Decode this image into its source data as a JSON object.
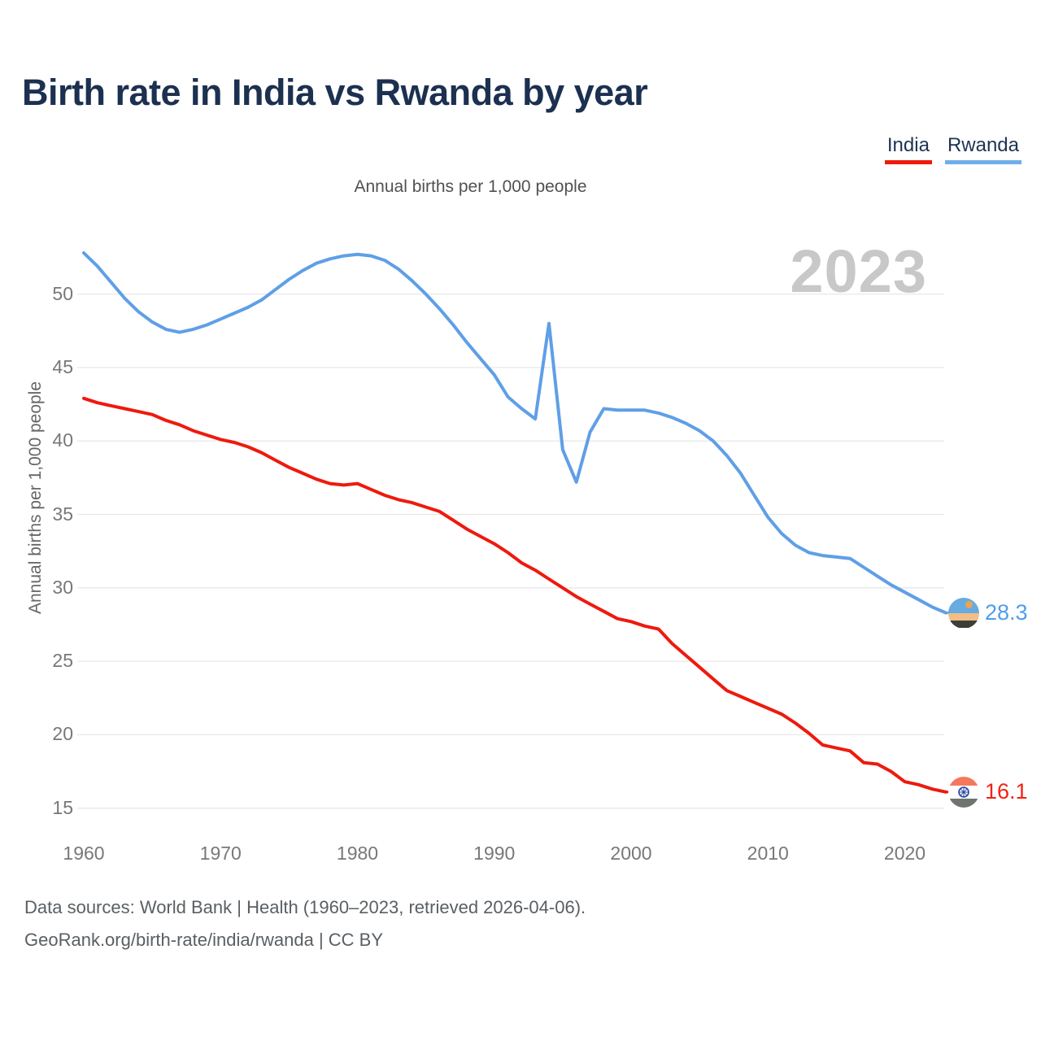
{
  "header": {
    "title": "Birth rate in India vs Rwanda by year"
  },
  "legend": {
    "items": [
      {
        "label": "India",
        "color": "#ee1a0d"
      },
      {
        "label": "Rwanda",
        "color": "#70aeea"
      }
    ]
  },
  "subtitle": "Annual births per 1,000 people",
  "watermark": "2023",
  "y_axis": {
    "title": "Annual births per 1,000 people",
    "ticks": [
      15,
      20,
      25,
      30,
      35,
      40,
      45,
      50
    ]
  },
  "x_axis": {
    "ticks": [
      1960,
      1970,
      1980,
      1990,
      2000,
      2010,
      2020
    ]
  },
  "end_labels": {
    "rwanda": {
      "value": "28.3",
      "flag": "rwanda-flag"
    },
    "india": {
      "value": "16.1",
      "flag": "india-flag"
    }
  },
  "footer": {
    "line1": "Data sources: World Bank | Health (1960–2023, retrieved 2026-04-06).",
    "line2": "GeoRank.org/birth-rate/india/rwanda | CC BY"
  },
  "colors": {
    "india_line": "#ee1a0d",
    "rwanda_line": "#5f9fe6",
    "india_label": "#f42110",
    "rwanda_label": "#4e9deb",
    "grid": "#e8e8e8",
    "watermark": "#c8c8c8",
    "title": "#1c3050",
    "tick": "#76787a"
  },
  "chart_data": {
    "type": "line",
    "title": "Birth rate in India vs Rwanda by year",
    "subtitle": "Annual births per 1,000 people",
    "xlabel": "",
    "ylabel": "Annual births per 1,000 people",
    "x_start": 1960,
    "x_end": 2023,
    "xticks": [
      1960,
      1970,
      1980,
      1990,
      2000,
      2010,
      2020
    ],
    "yticks": [
      15,
      20,
      25,
      30,
      35,
      40,
      45,
      50
    ],
    "ylim": [
      14,
      54
    ],
    "grid": true,
    "legend_position": "top-right",
    "series": [
      {
        "name": "India",
        "color": "#ee1a0d",
        "end_label": "16.1",
        "values": [
          42.9,
          42.6,
          42.4,
          42.2,
          42.0,
          41.8,
          41.4,
          41.1,
          40.7,
          40.4,
          40.1,
          39.9,
          39.6,
          39.2,
          38.7,
          38.2,
          37.8,
          37.4,
          37.1,
          37.0,
          37.1,
          36.7,
          36.3,
          36.0,
          35.8,
          35.5,
          35.2,
          34.6,
          34.0,
          33.5,
          33.0,
          32.4,
          31.7,
          31.2,
          30.6,
          30.0,
          29.4,
          28.9,
          28.4,
          27.9,
          27.7,
          27.4,
          27.2,
          26.2,
          25.4,
          24.6,
          23.8,
          23.0,
          22.6,
          22.2,
          21.8,
          21.4,
          20.8,
          20.1,
          19.3,
          19.1,
          18.9,
          18.1,
          18.0,
          17.5,
          16.8,
          16.6,
          16.3,
          16.1
        ]
      },
      {
        "name": "Rwanda",
        "color": "#5f9fe6",
        "end_label": "28.3",
        "values": [
          52.8,
          51.9,
          50.8,
          49.7,
          48.8,
          48.1,
          47.6,
          47.4,
          47.6,
          47.9,
          48.3,
          48.7,
          49.1,
          49.6,
          50.3,
          51.0,
          51.6,
          52.1,
          52.4,
          52.6,
          52.7,
          52.6,
          52.3,
          51.7,
          50.9,
          50.0,
          49.0,
          47.9,
          46.7,
          45.6,
          44.5,
          43.0,
          42.2,
          41.5,
          48.0,
          39.4,
          37.2,
          40.6,
          42.2,
          42.1,
          42.1,
          42.1,
          41.9,
          41.6,
          41.2,
          40.7,
          40.0,
          39.0,
          37.8,
          36.3,
          34.8,
          33.7,
          32.9,
          32.4,
          32.2,
          32.1,
          32.0,
          31.4,
          30.8,
          30.2,
          29.7,
          29.2,
          28.7,
          28.3
        ]
      }
    ]
  }
}
